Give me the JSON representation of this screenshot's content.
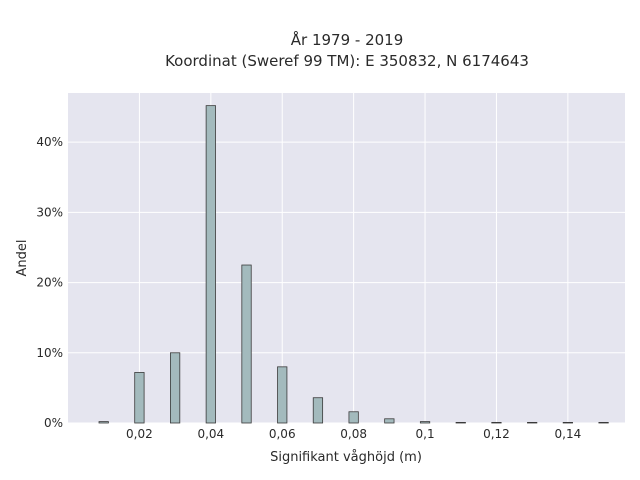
{
  "chart_data": {
    "type": "bar",
    "title_line1": "År 1979 - 2019",
    "title_line2": "Koordinat (Sweref 99 TM): E 350832, N 6174643",
    "xlabel": "Signifikant våghöjd (m)",
    "ylabel": "Andel",
    "x_ticks": [
      "0,02",
      "0,04",
      "0,06",
      "0,08",
      "0,1",
      "0,12",
      "0,14"
    ],
    "x_tick_values": [
      0.02,
      0.04,
      0.06,
      0.08,
      0.1,
      0.12,
      0.14
    ],
    "y_ticks": [
      "0%",
      "10%",
      "20%",
      "30%",
      "40%"
    ],
    "y_tick_values": [
      0,
      10,
      20,
      30,
      40
    ],
    "xlim": [
      0.0,
      0.156
    ],
    "ylim": [
      0,
      47
    ],
    "x": [
      0.01,
      0.02,
      0.03,
      0.04,
      0.05,
      0.06,
      0.07,
      0.08,
      0.09,
      0.1,
      0.11,
      0.12,
      0.13,
      0.14,
      0.15
    ],
    "values": [
      0.2,
      7.2,
      10.0,
      45.2,
      22.5,
      8.0,
      3.6,
      1.6,
      0.6,
      0.2,
      0.05,
      0.05,
      0.05,
      0.05,
      0.05
    ],
    "grid": true,
    "colors": {
      "plot_bg": "#e5e5ef",
      "grid": "#ffffff",
      "bar_fill": "#a3babd",
      "bar_stroke": "#3a3a3a"
    }
  }
}
